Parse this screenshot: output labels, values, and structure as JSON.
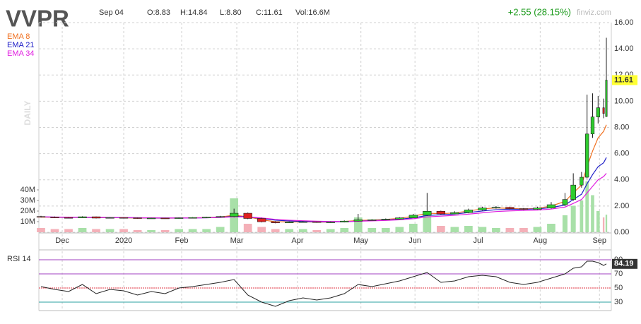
{
  "chart_data": [
    {
      "type": "candlestick",
      "title": "VVPR",
      "date": "Sep 04",
      "open_text": "O:8.83",
      "high_text": "H:14.84",
      "low_text": "L:8.80",
      "close_text": "C:11.61",
      "volume_text": "Vol:16.6M",
      "change_text": "+2.55 (28.15%)",
      "site": "finviz.com",
      "timeframe": "DAILY",
      "last_price": 11.61,
      "x": [
        0,
        5,
        10,
        15,
        20,
        25,
        30,
        35,
        40,
        45,
        50,
        55,
        60,
        65,
        70,
        75,
        80,
        85,
        90,
        95,
        100,
        105,
        110,
        115,
        120,
        125,
        130,
        135,
        140,
        145,
        150,
        155,
        160,
        165,
        170,
        175,
        180,
        185,
        190,
        193,
        196,
        198,
        200,
        202,
        204,
        205
      ],
      "xlim": [
        0,
        205
      ],
      "xticks": [
        {
          "value": 7.7,
          "label": "Dec"
        },
        {
          "value": 30,
          "label": "2020"
        },
        {
          "value": 51,
          "label": "Feb"
        },
        {
          "value": 71,
          "label": "Mar"
        },
        {
          "value": 93,
          "label": "Apr"
        },
        {
          "value": 116,
          "label": "May"
        },
        {
          "value": 135.6,
          "label": "Jun"
        },
        {
          "value": 158.5,
          "label": "Jul"
        },
        {
          "value": 181,
          "label": "Aug"
        },
        {
          "value": 202.5,
          "label": "Sep"
        }
      ],
      "open": [
        1.2,
        1.15,
        1.12,
        1.1,
        1.18,
        1.08,
        1.12,
        1.1,
        1.05,
        1.08,
        1.05,
        1.1,
        1.12,
        1.15,
        1.2,
        1.45,
        1.05,
        0.8,
        0.72,
        0.78,
        0.8,
        0.75,
        0.78,
        0.85,
        0.95,
        0.95,
        1.0,
        1.1,
        1.3,
        1.6,
        1.4,
        1.5,
        1.7,
        1.85,
        1.9,
        1.8,
        1.75,
        1.85,
        2.1,
        2.5,
        3.6,
        4.2,
        7.5,
        8.8,
        9.5,
        8.83
      ],
      "high": [
        1.25,
        1.2,
        1.16,
        1.22,
        1.2,
        1.15,
        1.15,
        1.12,
        1.1,
        1.1,
        1.13,
        1.15,
        1.18,
        1.25,
        1.8,
        1.5,
        1.1,
        0.85,
        0.82,
        0.85,
        0.82,
        0.82,
        0.9,
        1.4,
        1.0,
        1.05,
        1.15,
        1.4,
        3.0,
        1.65,
        1.6,
        1.8,
        1.95,
        2.0,
        1.95,
        1.85,
        1.95,
        2.3,
        3.0,
        4.5,
        4.6,
        10.5,
        10.6,
        10.4,
        10.2,
        14.84
      ],
      "low": [
        1.12,
        1.08,
        1.05,
        1.08,
        1.05,
        1.05,
        1.05,
        1.02,
        1.03,
        1.02,
        1.03,
        1.08,
        1.1,
        1.12,
        1.15,
        1.0,
        0.75,
        0.68,
        0.7,
        0.75,
        0.72,
        0.72,
        0.75,
        0.82,
        0.9,
        0.92,
        0.98,
        1.08,
        1.25,
        1.35,
        1.38,
        1.45,
        1.65,
        1.8,
        1.75,
        1.7,
        1.72,
        1.8,
        2.0,
        2.4,
        3.4,
        4.1,
        7.2,
        8.3,
        8.7,
        8.8
      ],
      "close": [
        1.15,
        1.12,
        1.1,
        1.18,
        1.08,
        1.12,
        1.1,
        1.05,
        1.08,
        1.05,
        1.1,
        1.12,
        1.15,
        1.2,
        1.45,
        1.05,
        0.8,
        0.72,
        0.78,
        0.8,
        0.75,
        0.78,
        0.85,
        0.95,
        0.95,
        1.0,
        1.1,
        1.3,
        1.6,
        1.4,
        1.5,
        1.7,
        1.85,
        1.9,
        1.8,
        1.75,
        1.85,
        2.1,
        2.5,
        3.6,
        4.2,
        7.5,
        8.8,
        9.5,
        9.06,
        11.61
      ],
      "up_color": "#2ecc2e",
      "down_color": "#e02020",
      "ylim": [
        0,
        16
      ],
      "yticks": [
        {
          "value": 0,
          "label": "0.00"
        },
        {
          "value": 2,
          "label": "2.00"
        },
        {
          "value": 4,
          "label": "4.00"
        },
        {
          "value": 6,
          "label": "6.00"
        },
        {
          "value": 8,
          "label": "8.00"
        },
        {
          "value": 10,
          "label": "10.00"
        },
        {
          "value": 12,
          "label": "12.00"
        },
        {
          "value": 14,
          "label": "14.00"
        },
        {
          "value": 16,
          "label": "16.00"
        }
      ],
      "grid": true,
      "series": [
        {
          "name": "EMA 8",
          "color": "#f07020",
          "values": [
            1.16,
            1.14,
            1.12,
            1.14,
            1.11,
            1.11,
            1.1,
            1.08,
            1.08,
            1.07,
            1.08,
            1.1,
            1.12,
            1.16,
            1.3,
            1.18,
            0.95,
            0.8,
            0.78,
            0.79,
            0.77,
            0.77,
            0.82,
            0.9,
            0.93,
            0.98,
            1.06,
            1.22,
            1.45,
            1.42,
            1.47,
            1.62,
            1.78,
            1.86,
            1.82,
            1.78,
            1.82,
            2.0,
            2.35,
            3.0,
            3.6,
            5.0,
            6.2,
            7.2,
            7.7,
            8.2
          ]
        },
        {
          "name": "EMA 21",
          "color": "#2020c8",
          "values": [
            1.17,
            1.15,
            1.14,
            1.14,
            1.12,
            1.12,
            1.11,
            1.1,
            1.09,
            1.08,
            1.08,
            1.09,
            1.1,
            1.13,
            1.22,
            1.18,
            1.05,
            0.92,
            0.86,
            0.83,
            0.8,
            0.79,
            0.8,
            0.85,
            0.89,
            0.93,
            0.99,
            1.1,
            1.28,
            1.33,
            1.39,
            1.5,
            1.62,
            1.72,
            1.75,
            1.75,
            1.78,
            1.88,
            2.08,
            2.5,
            2.9,
            3.7,
            4.4,
            5.0,
            5.3,
            5.7
          ]
        },
        {
          "name": "EMA 34",
          "color": "#e020e0",
          "values": [
            1.18,
            1.16,
            1.15,
            1.15,
            1.14,
            1.13,
            1.12,
            1.11,
            1.1,
            1.09,
            1.09,
            1.09,
            1.1,
            1.12,
            1.18,
            1.17,
            1.09,
            0.98,
            0.92,
            0.88,
            0.84,
            0.82,
            0.82,
            0.84,
            0.87,
            0.9,
            0.95,
            1.03,
            1.17,
            1.23,
            1.29,
            1.38,
            1.48,
            1.58,
            1.63,
            1.66,
            1.69,
            1.77,
            1.92,
            2.2,
            2.5,
            3.0,
            3.5,
            4.0,
            4.25,
            4.5
          ]
        }
      ],
      "volume": {
        "values": [
          4000000,
          3000000,
          3000000,
          4000000,
          3000000,
          3000000,
          3000000,
          2000000,
          2000000,
          2000000,
          3000000,
          3000000,
          3000000,
          5000000,
          32000000,
          8000000,
          5000000,
          3000000,
          3000000,
          3000000,
          2000000,
          3000000,
          4000000,
          14000000,
          4000000,
          4000000,
          5000000,
          8000000,
          20000000,
          6000000,
          5000000,
          6000000,
          5000000,
          4000000,
          4000000,
          4000000,
          5000000,
          8000000,
          16000000,
          25000000,
          30000000,
          48000000,
          35000000,
          20000000,
          14000000,
          16600000
        ],
        "up_color": "#a8e0a8",
        "down_color": "#f4b0b8",
        "y2lim": [
          0,
          198000000
        ],
        "y2ticks": [
          {
            "value": 10000000,
            "label": "10M"
          },
          {
            "value": 20000000,
            "label": "20M"
          },
          {
            "value": 30000000,
            "label": "30M"
          },
          {
            "value": 40000000,
            "label": "40M"
          }
        ]
      }
    },
    {
      "type": "line",
      "title": "RSI 14",
      "color": "#222222",
      "last_value": 84.19,
      "x": [
        0,
        5,
        10,
        15,
        20,
        25,
        30,
        35,
        40,
        45,
        50,
        55,
        60,
        65,
        70,
        75,
        80,
        85,
        90,
        95,
        100,
        105,
        110,
        115,
        120,
        125,
        130,
        135,
        140,
        145,
        150,
        155,
        160,
        165,
        170,
        175,
        180,
        185,
        190,
        193,
        196,
        198,
        200,
        202,
        204,
        205
      ],
      "xlim": [
        0,
        205
      ],
      "values": [
        52,
        48,
        45,
        55,
        42,
        48,
        46,
        40,
        45,
        42,
        50,
        52,
        55,
        58,
        62,
        40,
        30,
        24,
        32,
        36,
        33,
        36,
        42,
        55,
        52,
        56,
        60,
        66,
        72,
        58,
        60,
        66,
        68,
        66,
        58,
        55,
        58,
        64,
        70,
        78,
        80,
        88,
        88,
        86,
        82,
        84.19
      ],
      "ylim": [
        20,
        100
      ],
      "yticks": [
        30,
        50,
        70,
        90
      ],
      "level_colors": [
        "#2aa0a0",
        "#e03040",
        "#a040c0",
        "#a040c0"
      ]
    }
  ]
}
